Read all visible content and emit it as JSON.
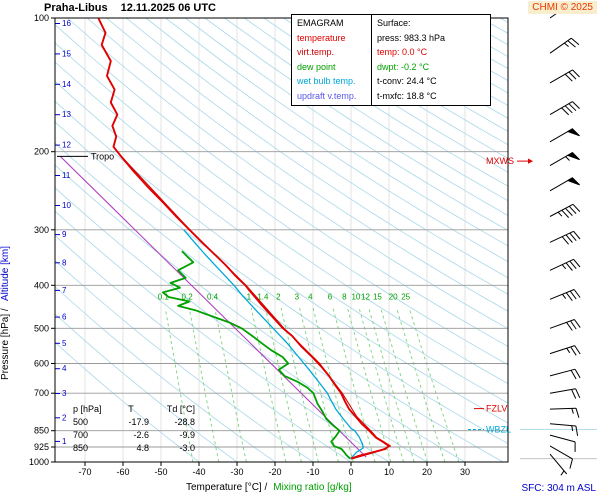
{
  "header": {
    "station": "Praha-Libus",
    "datetime": "12.11.2025 06 UTC",
    "copyright": "CHMI © 2025"
  },
  "legend": {
    "title": "EMAGRAM",
    "items": [
      {
        "label": "temperature",
        "color": "#e00000"
      },
      {
        "label": "virt.temp.",
        "color": "#cc0000"
      },
      {
        "label": "dew point",
        "color": "#00a000"
      },
      {
        "label": "wet bulb temp.",
        "color": "#00a8d8"
      },
      {
        "label": "updraft v.temp.",
        "color": "#5858e8"
      }
    ]
  },
  "surface_panel": {
    "title": "Surface:",
    "rows": [
      {
        "text": "press: 983.3 hPa",
        "color": "#000000"
      },
      {
        "text": "temp: 0.0 °C",
        "color": "#e00000"
      },
      {
        "text": "dwpt: -0.2 °C",
        "color": "#00a000"
      },
      {
        "text": "t-conv: 24.4 °C",
        "color": "#000000"
      },
      {
        "text": "t-mxfc: 18.8 °C",
        "color": "#000000"
      }
    ]
  },
  "levels_table": {
    "col_p": "p [hPa]",
    "col_t": "T",
    "col_td": "Td [°C]",
    "rows": [
      {
        "p": "500",
        "t": "-17.9",
        "td": "-28.8"
      },
      {
        "p": "700",
        "t": "-2.6",
        "td": "-9.9"
      },
      {
        "p": "850",
        "t": "4.8",
        "td": "-3.0"
      }
    ]
  },
  "axes": {
    "pressure_label": "Pressure [hPa] /",
    "altitude_label": "Altitude [km]",
    "temp_label": "Temperature [°C] /",
    "mixing_label": "Mixing ratio [g/kg]",
    "sfc_label": "SFC: 304 m ASL",
    "pressure_ticks": [
      100,
      200,
      300,
      400,
      500,
      600,
      700,
      850,
      925,
      1000
    ],
    "temp_ticks": [
      -70,
      -60,
      -50,
      -40,
      -30,
      -20,
      -10,
      0,
      10,
      20,
      30
    ],
    "altitude_ticks_km": [
      1,
      2,
      3,
      4,
      5,
      6,
      7,
      8,
      9,
      10,
      11,
      12,
      13,
      14,
      15,
      16
    ]
  },
  "chart_data": {
    "type": "line",
    "title": "Emagram sounding Praha-Libus 12.11.2025 06 UTC",
    "x_axis": {
      "label": "Temperature [°C]",
      "range": [
        -70,
        30
      ]
    },
    "y_axis": {
      "label": "Pressure [hPa]",
      "range": [
        1000,
        100
      ],
      "scale": "log"
    },
    "surface": {
      "pressure_hpa": 983.3,
      "temp_c": 0.0,
      "dewpoint_c": -0.2,
      "t_conv_c": 24.4,
      "t_mxfc_c": 18.8,
      "station_elevation_m": 304
    },
    "mixing_ratio_lines": [
      0.1,
      0.2,
      0.4,
      1,
      1.4,
      2,
      3,
      4,
      6,
      8,
      10,
      12,
      15,
      20,
      25
    ],
    "series": [
      {
        "name": "updraft v.temp.",
        "color": "#b040c0",
        "width": 1.1,
        "points": [
          [
            975,
            4.0
          ],
          [
            205,
            -76.5
          ]
        ]
      },
      {
        "name": "wet bulb temp.",
        "color": "#00a8d8",
        "width": 1.3,
        "points": [
          [
            983,
            -0.1
          ],
          [
            950,
            1.5
          ],
          [
            930,
            3.2
          ],
          [
            910,
            3.0
          ],
          [
            880,
            2.2
          ],
          [
            850,
            1.0
          ],
          [
            840,
            0.0
          ],
          [
            800,
            -2.0
          ],
          [
            760,
            -4.0
          ],
          [
            720,
            -5.5
          ],
          [
            700,
            -6.2
          ],
          [
            660,
            -8.5
          ],
          [
            620,
            -11.0
          ],
          [
            580,
            -13.8
          ],
          [
            540,
            -16.8
          ],
          [
            500,
            -20.5
          ],
          [
            460,
            -24.5
          ],
          [
            420,
            -28.8
          ],
          [
            400,
            -30.8
          ],
          [
            370,
            -34.5
          ],
          [
            340,
            -38.5
          ],
          [
            320,
            -41.2
          ],
          [
            300,
            -44.0
          ]
        ]
      },
      {
        "name": "virt.temp.",
        "color": "#cc0000",
        "width": 1,
        "points": [
          [
            983,
            0.5
          ],
          [
            950,
            6.5
          ],
          [
            920,
            10.4
          ],
          [
            880,
            6.8
          ],
          [
            850,
            5.2
          ],
          [
            790,
            1.5
          ],
          [
            700,
            -2.3
          ],
          [
            600,
            -8.2
          ],
          [
            500,
            -17.6
          ],
          [
            400,
            -27.6
          ],
          [
            300,
            -42.4
          ],
          [
            205,
            -60.4
          ]
        ]
      },
      {
        "name": "dew point",
        "color": "#00a000",
        "width": 1.8,
        "points": [
          [
            983,
            -0.2
          ],
          [
            965,
            -1.2
          ],
          [
            950,
            -1.8
          ],
          [
            935,
            -2.5
          ],
          [
            920,
            -4.5
          ],
          [
            900,
            -5.2
          ],
          [
            875,
            -4.0
          ],
          [
            850,
            -3.0
          ],
          [
            830,
            -4.5
          ],
          [
            800,
            -6.5
          ],
          [
            770,
            -7.5
          ],
          [
            740,
            -8.8
          ],
          [
            700,
            -9.9
          ],
          [
            680,
            -11.5
          ],
          [
            660,
            -14.0
          ],
          [
            640,
            -17.5
          ],
          [
            620,
            -19.0
          ],
          [
            600,
            -16.5
          ],
          [
            580,
            -18.0
          ],
          [
            560,
            -21.0
          ],
          [
            540,
            -23.5
          ],
          [
            520,
            -26.0
          ],
          [
            500,
            -28.8
          ],
          [
            485,
            -32.0
          ],
          [
            470,
            -36.5
          ],
          [
            455,
            -41.0
          ],
          [
            445,
            -45.5
          ],
          [
            435,
            -42.5
          ],
          [
            425,
            -48.0
          ],
          [
            415,
            -49.5
          ],
          [
            405,
            -45.0
          ],
          [
            395,
            -47.5
          ],
          [
            385,
            -43.5
          ],
          [
            370,
            -45.5
          ],
          [
            355,
            -41.5
          ],
          [
            345,
            -43.0
          ],
          [
            335,
            -44.5
          ]
        ]
      },
      {
        "name": "temperature",
        "color": "#e00000",
        "width": 1.9,
        "points": [
          [
            983,
            0.0
          ],
          [
            968,
            2.2
          ],
          [
            950,
            6.0
          ],
          [
            935,
            9.0
          ],
          [
            920,
            10.0
          ],
          [
            905,
            8.8
          ],
          [
            880,
            6.5
          ],
          [
            850,
            4.8
          ],
          [
            820,
            2.8
          ],
          [
            790,
            1.2
          ],
          [
            760,
            -0.5
          ],
          [
            730,
            -1.6
          ],
          [
            700,
            -2.6
          ],
          [
            670,
            -4.2
          ],
          [
            640,
            -5.8
          ],
          [
            610,
            -7.8
          ],
          [
            580,
            -10.2
          ],
          [
            550,
            -13.0
          ],
          [
            520,
            -15.5
          ],
          [
            500,
            -17.9
          ],
          [
            470,
            -20.8
          ],
          [
            440,
            -23.8
          ],
          [
            410,
            -26.8
          ],
          [
            400,
            -27.8
          ],
          [
            380,
            -30.5
          ],
          [
            360,
            -33.0
          ],
          [
            340,
            -36.0
          ],
          [
            320,
            -39.2
          ],
          [
            300,
            -42.5
          ],
          [
            280,
            -46.0
          ],
          [
            260,
            -49.5
          ],
          [
            240,
            -53.5
          ],
          [
            220,
            -57.5
          ],
          [
            205,
            -60.5
          ],
          [
            195,
            -62.5
          ],
          [
            185,
            -61.8
          ],
          [
            175,
            -62.8
          ],
          [
            165,
            -61.5
          ],
          [
            155,
            -63.2
          ],
          [
            145,
            -62.2
          ],
          [
            135,
            -64.2
          ],
          [
            125,
            -63.2
          ],
          [
            115,
            -65.6
          ],
          [
            108,
            -64.6
          ],
          [
            100,
            -66.5
          ]
        ]
      }
    ],
    "markers": {
      "tropo": {
        "label": "Tropo",
        "p": 205,
        "color": "#000000"
      },
      "mxws": {
        "label": "MXWS",
        "p": 210,
        "color": "#e00000"
      },
      "fzlv": {
        "label": "FZLV",
        "p": 758,
        "color": "#e00000"
      },
      "wbzl": {
        "label": "WBZL",
        "p": 845,
        "color": "#00a8d8"
      }
    },
    "wind_barbs": [
      [
        100,
        20,
        55
      ],
      [
        120,
        25,
        55
      ],
      [
        140,
        30,
        60
      ],
      [
        165,
        40,
        60
      ],
      [
        190,
        50,
        60
      ],
      [
        215,
        55,
        60
      ],
      [
        245,
        50,
        60
      ],
      [
        280,
        45,
        62
      ],
      [
        320,
        40,
        65
      ],
      [
        370,
        35,
        65
      ],
      [
        430,
        35,
        68
      ],
      [
        500,
        30,
        70
      ],
      [
        570,
        25,
        72
      ],
      [
        640,
        20,
        75
      ],
      [
        700,
        20,
        80
      ],
      [
        760,
        15,
        88
      ],
      [
        820,
        15,
        95
      ],
      [
        870,
        10,
        105
      ],
      [
        920,
        10,
        120
      ],
      [
        960,
        5,
        140
      ]
    ]
  }
}
